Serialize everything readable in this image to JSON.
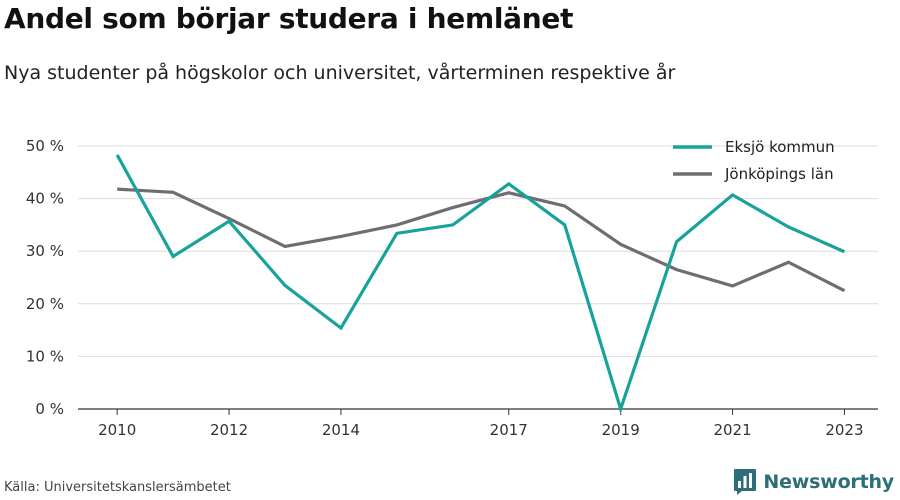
{
  "header": {
    "title": "Andel som börjar studera i hemlänet",
    "subtitle": "Nya studenter på högskolor och universitet, vårterminen respektive år"
  },
  "footer": {
    "source": "Källa: Universitetskanslersämbetet",
    "brand_name": "Newsworthy",
    "brand_icon": "bar-chart-logo-icon",
    "brand_color": "#2c6f78"
  },
  "chart_data": {
    "type": "line",
    "title": "Andel som börjar studera i hemlänet",
    "subtitle": "Nya studenter på högskolor och universitet, vårterminen respektive år",
    "x": [
      2010,
      2011,
      2012,
      2013,
      2014,
      2015,
      2016,
      2017,
      2018,
      2019,
      2020,
      2021,
      2022,
      2023
    ],
    "x_tick_labels": [
      "2010",
      "2012",
      "2014",
      "2017",
      "2019",
      "2021",
      "2023"
    ],
    "x_ticks": [
      2010,
      2012,
      2014,
      2017,
      2019,
      2021,
      2023
    ],
    "ylim": [
      0,
      50
    ],
    "y_ticks": [
      0,
      10,
      20,
      30,
      40,
      50
    ],
    "y_tick_labels": [
      "0 %",
      "10 %",
      "20 %",
      "30 %",
      "40 %",
      "50 %"
    ],
    "grid": "horizontal",
    "legend_position": "top-right",
    "series": [
      {
        "name": "Eksjö kommun",
        "color": "#17a39b",
        "values": [
          48.3,
          29.0,
          35.7,
          23.5,
          15.4,
          33.4,
          35.0,
          42.8,
          35.0,
          0.0,
          31.8,
          40.7,
          34.6,
          29.9
        ]
      },
      {
        "name": "Jönköpings län",
        "color": "#6e6d72",
        "values": [
          41.8,
          41.2,
          36.2,
          30.9,
          32.8,
          35.0,
          38.3,
          41.1,
          38.6,
          31.3,
          26.5,
          23.4,
          27.9,
          22.5
        ]
      }
    ]
  }
}
